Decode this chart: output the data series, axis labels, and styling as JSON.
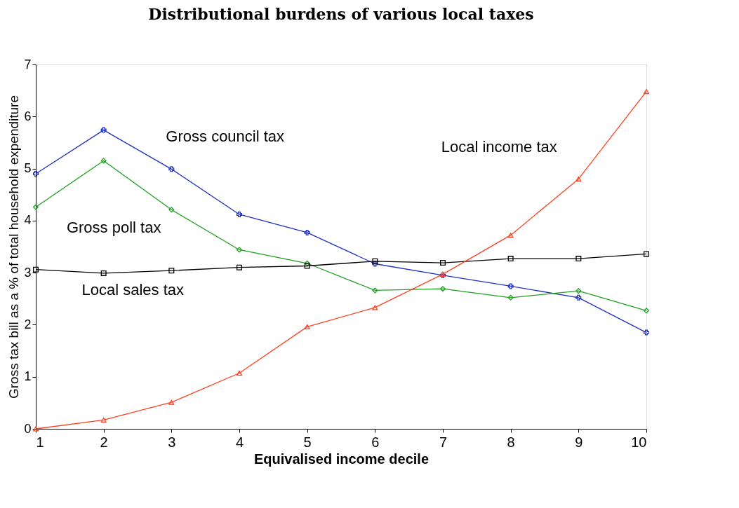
{
  "chart_data": {
    "type": "line",
    "title": "Distributional burdens of various local taxes",
    "xlabel": "Equivalised income decile",
    "ylabel": "Gross tax bill as a % of total household expenditure",
    "x": [
      1,
      2,
      3,
      4,
      5,
      6,
      7,
      8,
      9,
      10
    ],
    "series": [
      {
        "name": "Gross council tax",
        "color": "#2030c0",
        "marker": "cross",
        "values": [
          4.9,
          5.74,
          4.99,
          4.12,
          3.77,
          3.17,
          2.95,
          2.74,
          2.52,
          1.85
        ]
      },
      {
        "name": "Gross poll tax",
        "color": "#20a020",
        "marker": "diamond",
        "values": [
          4.26,
          5.15,
          4.21,
          3.44,
          3.18,
          2.66,
          2.69,
          2.52,
          2.65,
          2.27
        ]
      },
      {
        "name": "Local sales tax",
        "color": "#000000",
        "marker": "square",
        "values": [
          3.06,
          2.99,
          3.04,
          3.1,
          3.13,
          3.22,
          3.19,
          3.27,
          3.27,
          3.36
        ]
      },
      {
        "name": "Local income tax",
        "color": "#ff4020",
        "marker": "triangle",
        "values": [
          0,
          0.17,
          0.51,
          1.07,
          1.96,
          2.33,
          2.97,
          3.72,
          4.8,
          6.48
        ]
      }
    ],
    "xlim": [
      1,
      10
    ],
    "xticks": [
      1,
      2,
      3,
      4,
      5,
      6,
      7,
      8,
      9,
      10
    ],
    "ylim": [
      0,
      7
    ],
    "yticks": [
      0,
      1,
      2,
      3,
      4,
      5,
      6,
      7
    ],
    "grid": false,
    "legend": false
  }
}
